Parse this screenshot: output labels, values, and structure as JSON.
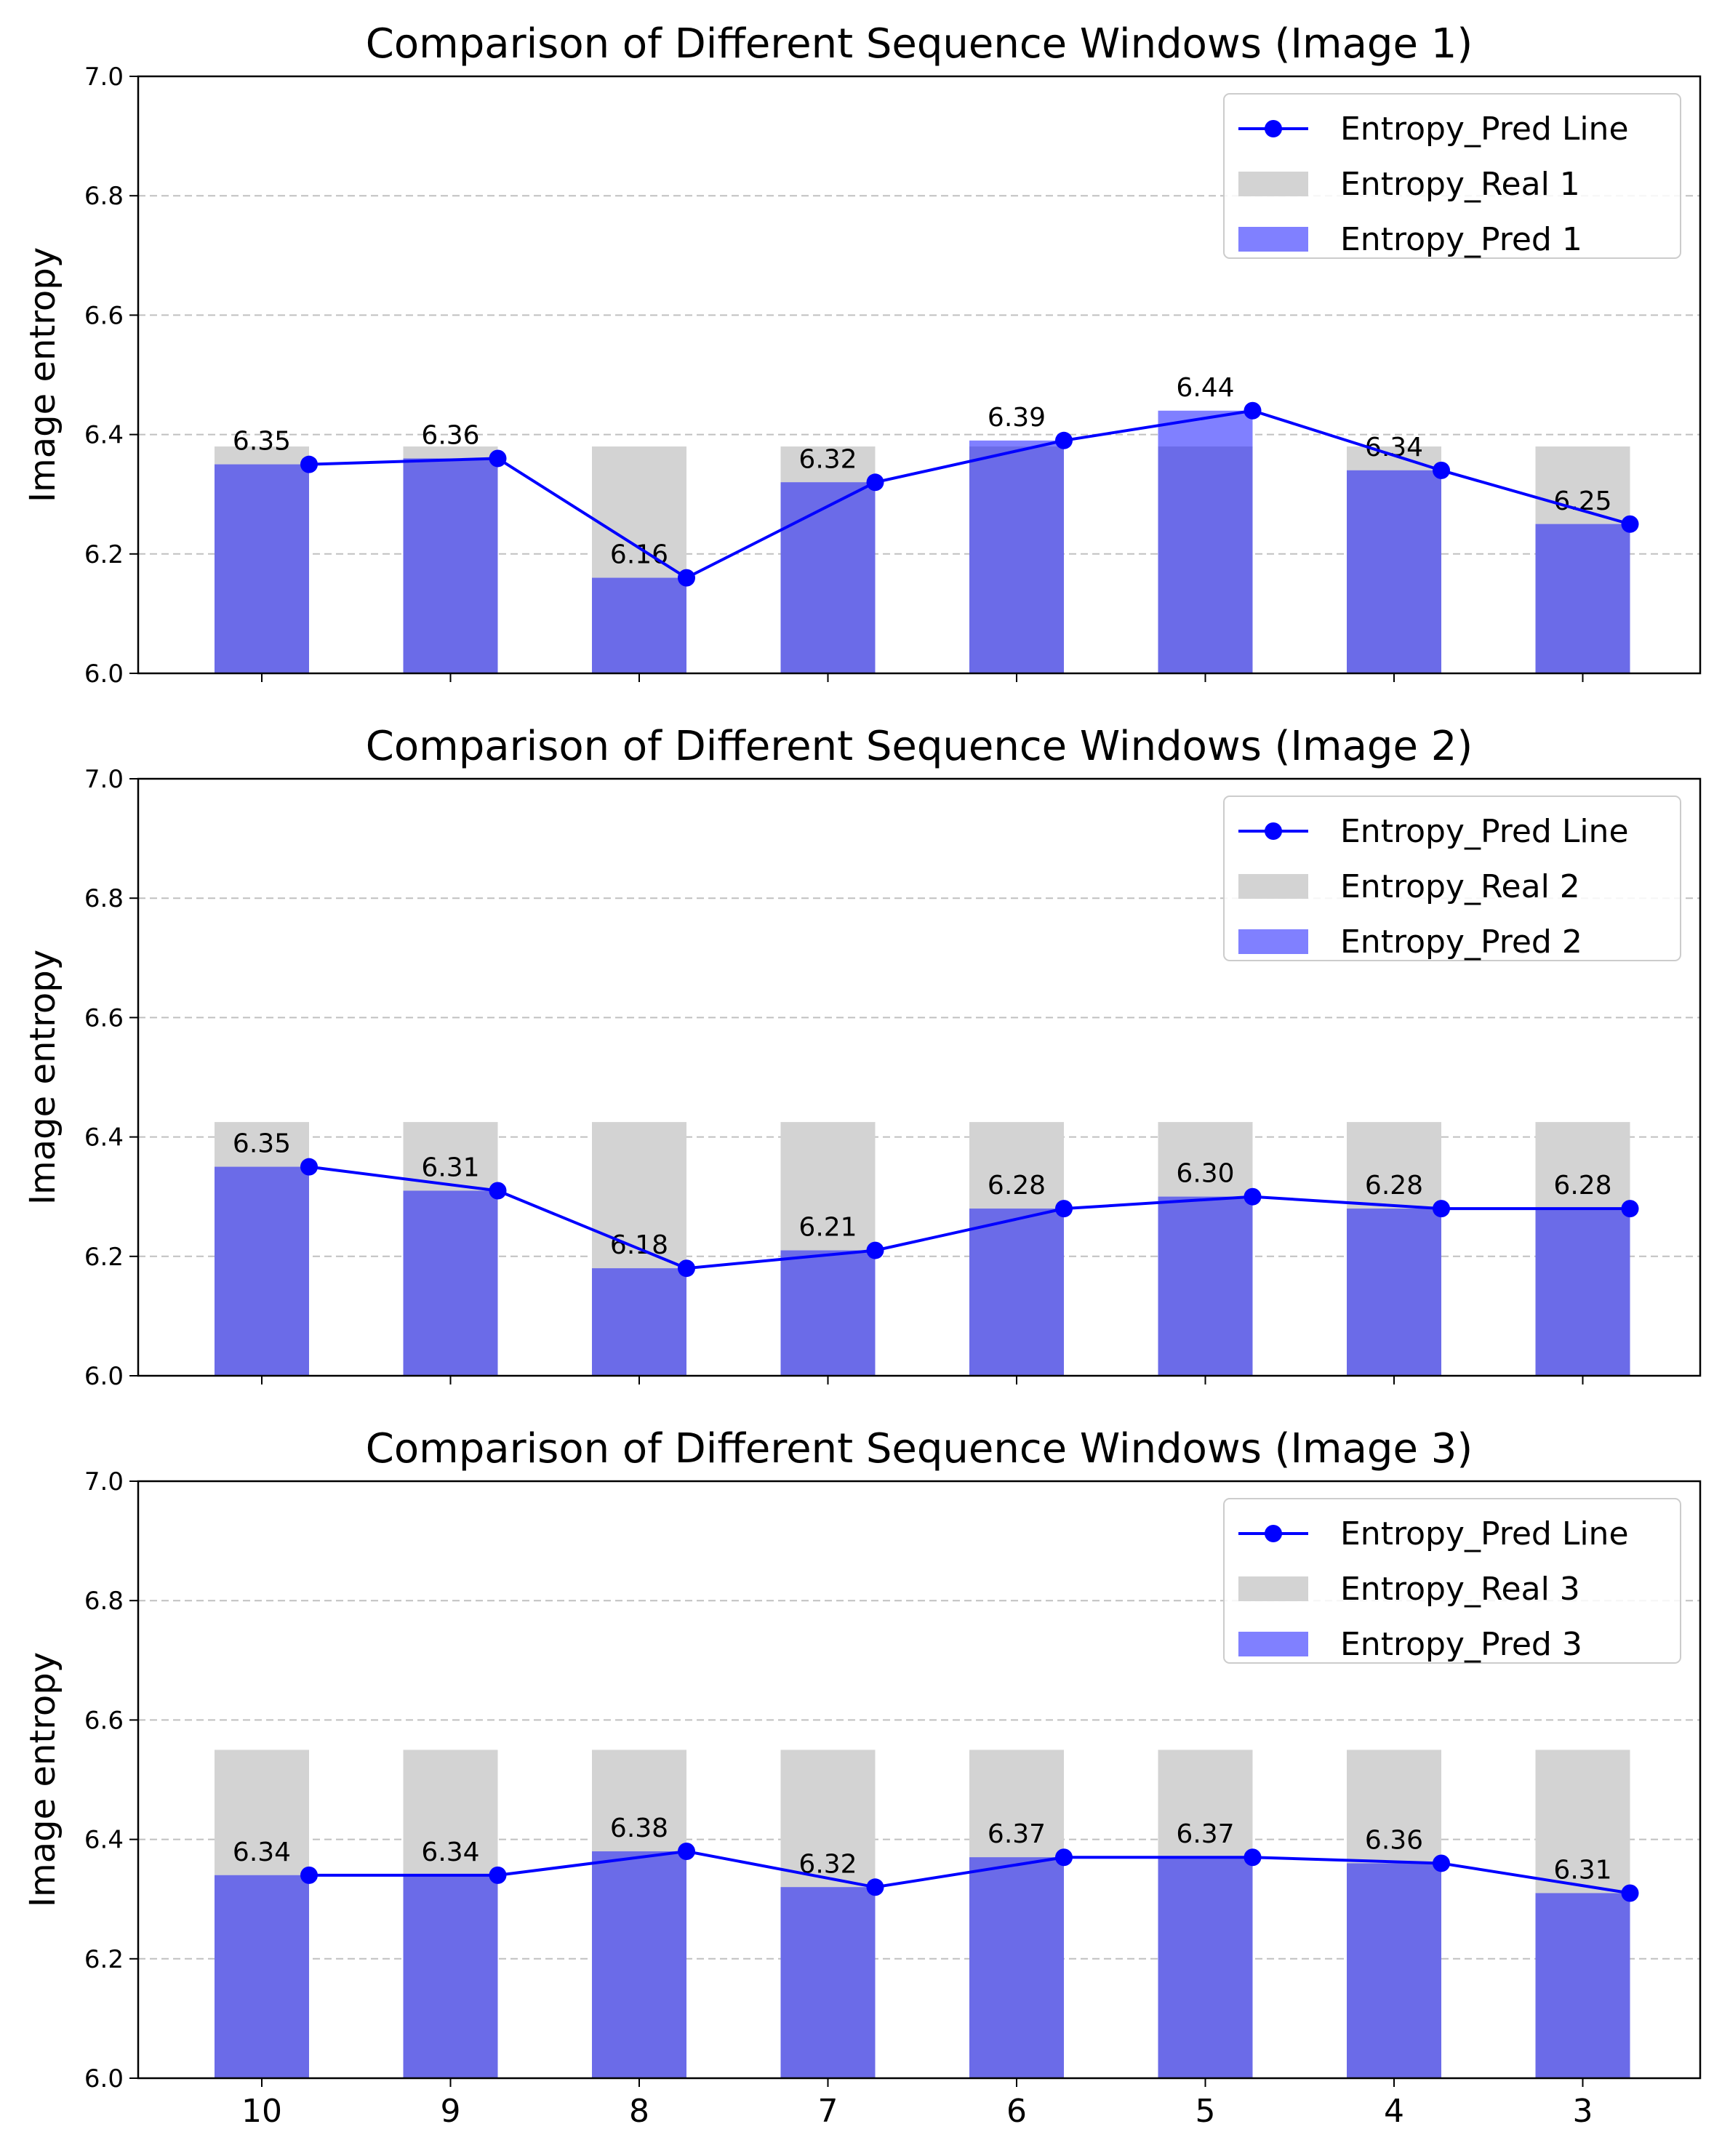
{
  "colors": {
    "real_bar": "#d3d3d3",
    "pred_bar": "#8080ff",
    "overlap_bar": "#6b6be8",
    "pred_line": "#0000ff",
    "grid": "#c0c0c0",
    "axis": "#000000"
  },
  "chart_data": [
    {
      "type": "bar",
      "title": "Comparison of Different Sequence Windows (Image 1)",
      "ylabel": "Image entropy",
      "xlabel": "",
      "ylim": [
        6.0,
        7.0
      ],
      "yticks": [
        "6.0",
        "6.2",
        "6.4",
        "6.6",
        "6.8",
        "7.0"
      ],
      "categories": [
        "10",
        "9",
        "8",
        "7",
        "6",
        "5",
        "4",
        "3"
      ],
      "show_xtick_labels": false,
      "grid": "y-dashed",
      "legend_position": "top-right",
      "series": [
        {
          "name": "Entropy_Real 1",
          "kind": "bar",
          "values": [
            6.38,
            6.38,
            6.38,
            6.38,
            6.38,
            6.38,
            6.38,
            6.38
          ]
        },
        {
          "name": "Entropy_Pred 1",
          "kind": "bar",
          "values": [
            6.35,
            6.36,
            6.16,
            6.32,
            6.39,
            6.44,
            6.34,
            6.25
          ]
        },
        {
          "name": "Entropy_Pred Line",
          "kind": "line",
          "values": [
            6.35,
            6.36,
            6.16,
            6.32,
            6.39,
            6.44,
            6.34,
            6.25
          ]
        }
      ],
      "data_labels": [
        "6.35",
        "6.36",
        "6.16",
        "6.32",
        "6.39",
        "6.44",
        "6.34",
        "6.25"
      ]
    },
    {
      "type": "bar",
      "title": "Comparison of Different Sequence Windows (Image 2)",
      "ylabel": "Image entropy",
      "xlabel": "",
      "ylim": [
        6.0,
        7.0
      ],
      "yticks": [
        "6.0",
        "6.2",
        "6.4",
        "6.6",
        "6.8",
        "7.0"
      ],
      "categories": [
        "10",
        "9",
        "8",
        "7",
        "6",
        "5",
        "4",
        "3"
      ],
      "show_xtick_labels": false,
      "grid": "y-dashed",
      "legend_position": "top-right",
      "series": [
        {
          "name": "Entropy_Real 2",
          "kind": "bar",
          "values": [
            6.425,
            6.425,
            6.425,
            6.425,
            6.425,
            6.425,
            6.425,
            6.425
          ]
        },
        {
          "name": "Entropy_Pred 2",
          "kind": "bar",
          "values": [
            6.35,
            6.31,
            6.18,
            6.21,
            6.28,
            6.3,
            6.28,
            6.28
          ]
        },
        {
          "name": "Entropy_Pred Line",
          "kind": "line",
          "values": [
            6.35,
            6.31,
            6.18,
            6.21,
            6.28,
            6.3,
            6.28,
            6.28
          ]
        }
      ],
      "data_labels": [
        "6.35",
        "6.31",
        "6.18",
        "6.21",
        "6.28",
        "6.30",
        "6.28",
        "6.28"
      ]
    },
    {
      "type": "bar",
      "title": "Comparison of Different Sequence Windows (Image 3)",
      "ylabel": "Image entropy",
      "xlabel": "",
      "ylim": [
        6.0,
        7.0
      ],
      "yticks": [
        "6.0",
        "6.2",
        "6.4",
        "6.6",
        "6.8",
        "7.0"
      ],
      "categories": [
        "10",
        "9",
        "8",
        "7",
        "6",
        "5",
        "4",
        "3"
      ],
      "show_xtick_labels": true,
      "grid": "y-dashed",
      "legend_position": "top-right",
      "series": [
        {
          "name": "Entropy_Real 3",
          "kind": "bar",
          "values": [
            6.55,
            6.55,
            6.55,
            6.55,
            6.55,
            6.55,
            6.55,
            6.55
          ]
        },
        {
          "name": "Entropy_Pred 3",
          "kind": "bar",
          "values": [
            6.34,
            6.34,
            6.38,
            6.32,
            6.37,
            6.37,
            6.36,
            6.31
          ]
        },
        {
          "name": "Entropy_Pred Line",
          "kind": "line",
          "values": [
            6.34,
            6.34,
            6.38,
            6.32,
            6.37,
            6.37,
            6.36,
            6.31
          ]
        }
      ],
      "data_labels": [
        "6.34",
        "6.34",
        "6.38",
        "6.32",
        "6.37",
        "6.37",
        "6.36",
        "6.31"
      ]
    }
  ]
}
